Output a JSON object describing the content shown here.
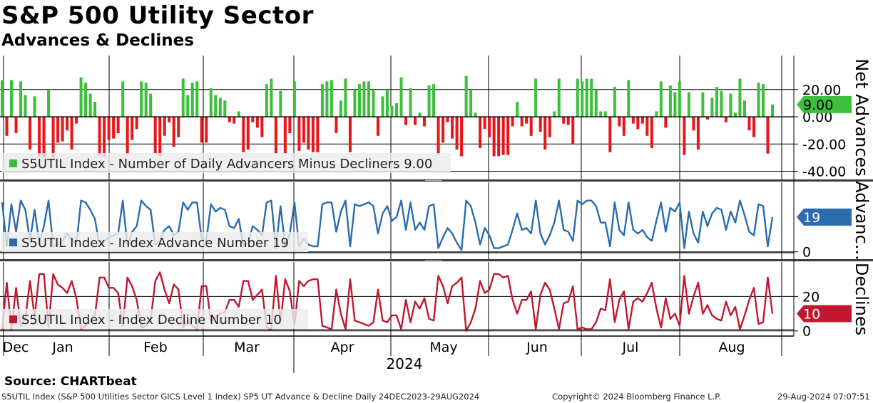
{
  "header": {
    "title": "S&P 500 Utility Sector",
    "subtitle": "Advances & Declines"
  },
  "source": "Source: CHARTbeat",
  "footer": {
    "description": "S5UTIL Index (S&P 500 Utilities Sector GICS Level 1 Index) SP5 UT Advance & Decline  Daily 24DEC2023-29AUG2024",
    "copyright": "Copyright© 2024 Bloomberg Finance L.P.",
    "timestamp": "29-Aug-2024 07:07:51"
  },
  "colors": {
    "up": "#3cbf3c",
    "down": "#e8161b",
    "advance": "#2a6cae",
    "decline": "#c0182e"
  },
  "chart_data": [
    {
      "type": "bar",
      "name": "net",
      "axis_title": "Net Advances",
      "legend": "S5UTIL Index - Number of Daily Advancers Minus Decliners 9.00",
      "last_value_label": "9.00",
      "ylim": [
        -46,
        45
      ],
      "yticks": [
        20,
        0,
        -20,
        -40
      ],
      "ytick_labels": [
        "20.00",
        "0.00",
        "-20.00",
        "-40.00"
      ],
      "values": [
        27,
        -14,
        27,
        -12,
        26,
        16,
        -24,
        15,
        -29,
        -30,
        20,
        -30,
        -19,
        -18,
        -10,
        -24,
        -5,
        29,
        25,
        17,
        11,
        -28,
        -29,
        -17,
        -16,
        -12,
        26,
        -28,
        -17,
        -9,
        26,
        25,
        17,
        -27,
        -29,
        -14,
        -4,
        -22,
        -15,
        28,
        16,
        25,
        26,
        -19,
        -19,
        21,
        16,
        14,
        12,
        -4,
        -5,
        4,
        -26,
        -24,
        -4,
        -8,
        -15,
        24,
        28,
        -27,
        19,
        -27,
        -12,
        26,
        -25,
        -19,
        -24,
        -26,
        -26,
        24,
        26,
        27,
        -12,
        12,
        28,
        -26,
        20,
        24,
        26,
        26,
        20,
        -14,
        15,
        20,
        8,
        10,
        29,
        -6,
        21,
        -6,
        3,
        -7,
        23,
        24,
        -28,
        -19,
        -4,
        -16,
        -24,
        -29,
        30,
        20,
        3,
        -23,
        -9,
        -15,
        -29,
        -29,
        -28,
        -28,
        -7,
        11,
        -7,
        -5,
        -14,
        28,
        -11,
        -24,
        -15,
        4,
        28,
        -5,
        -6,
        -20,
        28,
        26,
        28,
        28,
        20,
        4,
        4,
        -26,
        22,
        -7,
        -14,
        27,
        -5,
        -9,
        -5,
        -14,
        -23,
        4,
        26,
        -8,
        23,
        18,
        26,
        -28,
        18,
        -10,
        -24,
        18,
        -2,
        14,
        22,
        19,
        -4,
        17,
        3,
        28,
        12,
        -10,
        -15,
        25,
        24,
        -27,
        9
      ],
      "series_color": "mixed"
    },
    {
      "type": "line",
      "name": "advances",
      "axis_title": "Advanc...",
      "legend": "S5UTIL Index - Index Advance Number 19",
      "last_value_label": "19",
      "ylim": [
        -4,
        38
      ],
      "yticks": [
        0
      ],
      "ytick_labels": [
        "0"
      ],
      "values": [
        27,
        3,
        26,
        11,
        28,
        23,
        6,
        23,
        5,
        14,
        28,
        3,
        4,
        6,
        10,
        7,
        4,
        28,
        27,
        23,
        18,
        3,
        6,
        8,
        9,
        10,
        28,
        3,
        11,
        14,
        28,
        25,
        23,
        4,
        6,
        12,
        14,
        9,
        11,
        27,
        23,
        27,
        27,
        7,
        6,
        26,
        22,
        24,
        23,
        14,
        13,
        18,
        3,
        5,
        14,
        12,
        9,
        27,
        28,
        2,
        25,
        3,
        10,
        27,
        3,
        7,
        4,
        3,
        3,
        26,
        27,
        27,
        11,
        22,
        28,
        3,
        26,
        25,
        26,
        27,
        25,
        10,
        21,
        25,
        17,
        19,
        28,
        12,
        27,
        12,
        16,
        12,
        25,
        26,
        2,
        8,
        13,
        10,
        5,
        1,
        28,
        25,
        16,
        4,
        13,
        9,
        2,
        2,
        3,
        4,
        12,
        21,
        12,
        13,
        10,
        28,
        10,
        4,
        9,
        16,
        28,
        12,
        11,
        6,
        28,
        26,
        28,
        28,
        25,
        16,
        16,
        3,
        27,
        12,
        9,
        27,
        12,
        10,
        12,
        8,
        6,
        17,
        27,
        11,
        24,
        22,
        27,
        2,
        22,
        10,
        5,
        22,
        14,
        21,
        24,
        23,
        12,
        22,
        16,
        28,
        20,
        11,
        9,
        26,
        25,
        3,
        19
      ],
      "series_color": "#2a6cae"
    },
    {
      "type": "line",
      "name": "declines",
      "axis_title": "Declines",
      "legend": "S5UTIL Index - Index Decline Number 10",
      "last_value_label": "10",
      "ylim": [
        -3,
        40
      ],
      "yticks": [
        20,
        0
      ],
      "ytick_labels": [
        "20",
        "0"
      ],
      "values": [
        1,
        28,
        1,
        25,
        3,
        7,
        29,
        8,
        33,
        33,
        2,
        33,
        27,
        25,
        22,
        29,
        19,
        1,
        3,
        6,
        9,
        31,
        31,
        25,
        25,
        22,
        3,
        31,
        26,
        18,
        2,
        3,
        6,
        29,
        34,
        24,
        16,
        27,
        24,
        2,
        6,
        3,
        1,
        26,
        26,
        5,
        8,
        10,
        11,
        18,
        18,
        14,
        29,
        29,
        18,
        21,
        24,
        2,
        1,
        32,
        5,
        30,
        23,
        3,
        29,
        26,
        29,
        30,
        30,
        3,
        2,
        1,
        24,
        10,
        1,
        30,
        6,
        5,
        4,
        3,
        5,
        24,
        6,
        5,
        9,
        9,
        1,
        18,
        5,
        17,
        13,
        19,
        7,
        6,
        32,
        26,
        16,
        26,
        28,
        31,
        0,
        5,
        13,
        29,
        22,
        24,
        33,
        33,
        31,
        32,
        18,
        10,
        18,
        18,
        23,
        1,
        21,
        28,
        24,
        13,
        1,
        16,
        17,
        26,
        1,
        2,
        1,
        1,
        5,
        13,
        12,
        30,
        5,
        18,
        23,
        1,
        17,
        19,
        17,
        22,
        28,
        13,
        2,
        19,
        7,
        10,
        3,
        32,
        10,
        20,
        28,
        10,
        15,
        9,
        7,
        6,
        17,
        9,
        14,
        1,
        9,
        18,
        25,
        4,
        5,
        31,
        10
      ],
      "series_color": "#c0182e"
    }
  ],
  "x_axis": {
    "months": [
      "Dec",
      "Jan",
      "Feb",
      "Mar",
      "Apr",
      "May",
      "Jun",
      "Jul",
      "Aug"
    ],
    "year_label": "2024"
  }
}
